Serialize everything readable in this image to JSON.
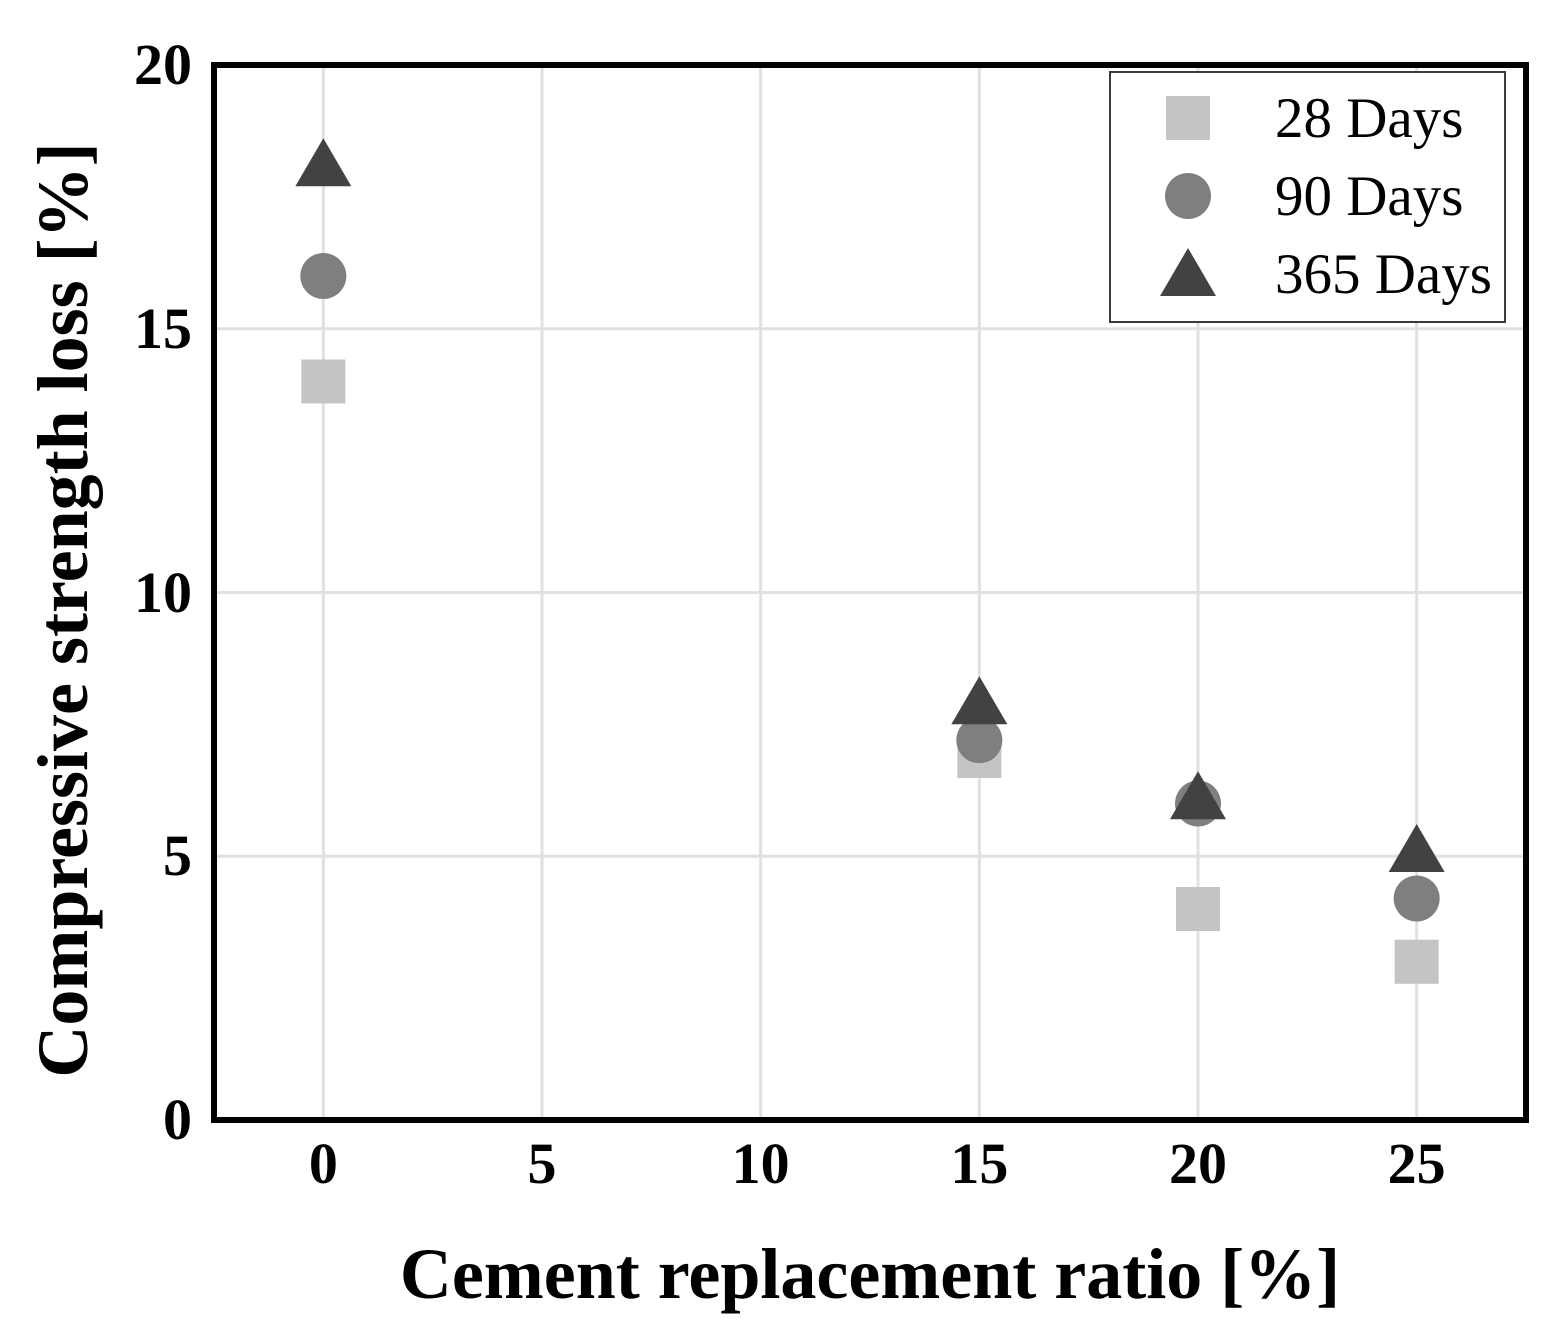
{
  "figure_background": "#ffffff",
  "chart_data": {
    "type": "scatter",
    "title": "",
    "xlabel": "Cement replacement ratio [%]",
    "ylabel": "Compressive strength loss [%]",
    "x_ticks": [
      0,
      5,
      10,
      15,
      20,
      25
    ],
    "y_ticks": [
      0,
      5,
      10,
      15,
      20
    ],
    "xlim": [
      -2.5,
      27.5
    ],
    "ylim": [
      0,
      20
    ],
    "grid": true,
    "grid_color": "#e0e0e0",
    "frame_color": "#000000",
    "legend_position": "top-right",
    "series": [
      {
        "name": "28 Days",
        "marker": "square",
        "color": "#c4c4c4",
        "x": [
          0,
          15,
          20,
          25
        ],
        "y": [
          14,
          6.9,
          4,
          3
        ]
      },
      {
        "name": "90 Days",
        "marker": "circle",
        "color": "#7f7f7f",
        "x": [
          0,
          15,
          20,
          25
        ],
        "y": [
          16,
          7.2,
          6,
          4.2
        ]
      },
      {
        "name": "365 Days",
        "marker": "triangle",
        "color": "#424242",
        "x": [
          0,
          15,
          20,
          25
        ],
        "y": [
          18.1,
          7.9,
          6.1,
          5.1
        ]
      }
    ]
  }
}
